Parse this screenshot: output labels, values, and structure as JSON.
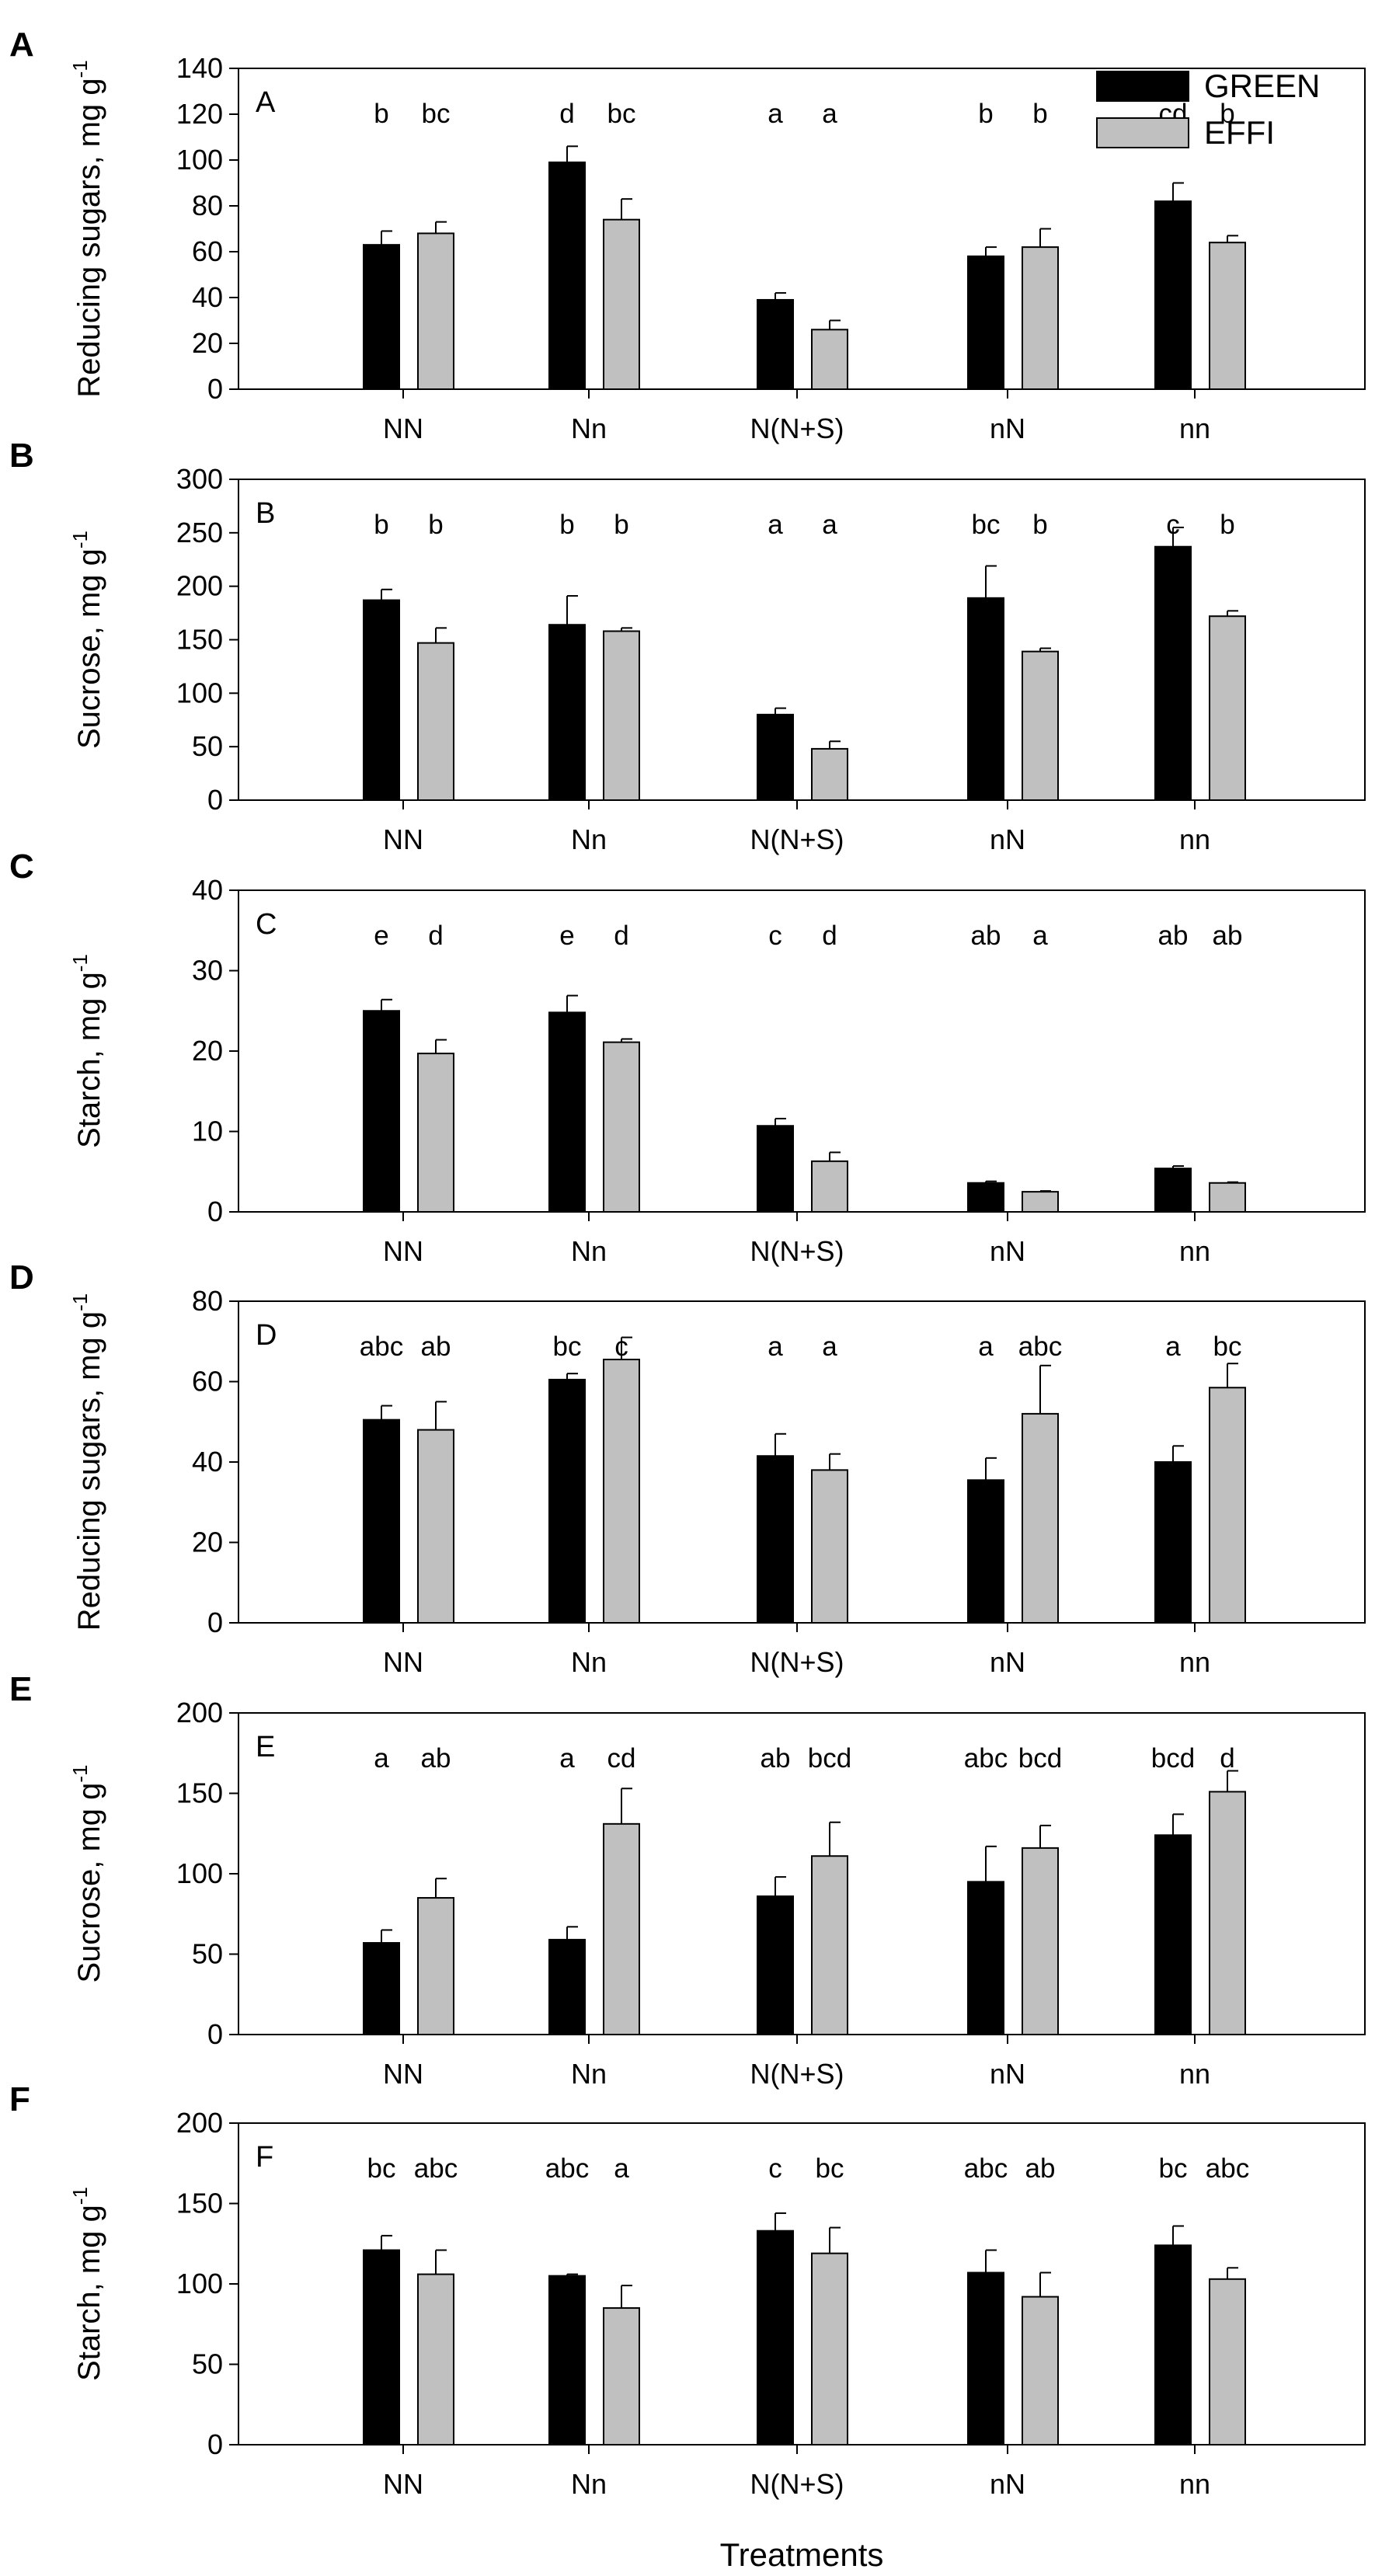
{
  "figure": {
    "x_title": "Treatments",
    "legend": {
      "position": "top-right",
      "items": [
        {
          "name": "GREEN",
          "color": "#000000"
        },
        {
          "name": "EFFI",
          "color": "#c0c0c0"
        }
      ]
    },
    "colors": {
      "green_bar": "#000000",
      "effi_bar": "#c0c0c0",
      "axis": "#000000"
    }
  },
  "chart_data": [
    {
      "type": "bar",
      "panel": "A",
      "inner_label": "A",
      "ylabel_main": "Reducing sugars, mg g",
      "ylabel_sup": "-1",
      "xlabel": "",
      "categories": [
        "NN",
        "Nn",
        "N(N+S)",
        "nN",
        "nn"
      ],
      "ylim": [
        0,
        140
      ],
      "yticks": [
        0,
        20,
        40,
        60,
        80,
        100,
        120,
        140
      ],
      "series": [
        {
          "name": "GREEN",
          "values": [
            63,
            99,
            39,
            58,
            82
          ],
          "errors": [
            6,
            7,
            3,
            4,
            8
          ],
          "letters": [
            "b",
            "d",
            "a",
            "b",
            "cd"
          ]
        },
        {
          "name": "EFFI",
          "values": [
            68,
            74,
            26,
            62,
            64
          ],
          "errors": [
            5,
            9,
            4,
            8,
            3
          ],
          "letters": [
            "bc",
            "bc",
            "a",
            "b",
            "b"
          ]
        }
      ]
    },
    {
      "type": "bar",
      "panel": "B",
      "inner_label": "B",
      "ylabel_main": "Sucrose, mg g",
      "ylabel_sup": "-1",
      "xlabel": "",
      "categories": [
        "NN",
        "Nn",
        "N(N+S)",
        "nN",
        "nn"
      ],
      "ylim": [
        0,
        300
      ],
      "yticks": [
        0,
        50,
        100,
        150,
        200,
        250,
        300
      ],
      "series": [
        {
          "name": "GREEN",
          "values": [
            187,
            164,
            80,
            189,
            237
          ],
          "errors": [
            10,
            27,
            6,
            30,
            18
          ],
          "letters": [
            "b",
            "b",
            "a",
            "bc",
            "c"
          ]
        },
        {
          "name": "EFFI",
          "values": [
            147,
            158,
            48,
            139,
            172
          ],
          "errors": [
            14,
            3,
            7,
            3,
            5
          ],
          "letters": [
            "b",
            "b",
            "a",
            "b",
            "b"
          ]
        }
      ]
    },
    {
      "type": "bar",
      "panel": "C",
      "inner_label": "C",
      "ylabel_main": "Starch, mg g",
      "ylabel_sup": "-1",
      "xlabel": "",
      "categories": [
        "NN",
        "Nn",
        "N(N+S)",
        "nN",
        "nn"
      ],
      "ylim": [
        0,
        40
      ],
      "yticks": [
        0,
        10,
        20,
        30,
        40
      ],
      "series": [
        {
          "name": "GREEN",
          "values": [
            25,
            24.8,
            10.7,
            3.6,
            5.4
          ],
          "errors": [
            1.4,
            2.1,
            0.9,
            0.2,
            0.3
          ],
          "letters": [
            "e",
            "e",
            "c",
            "ab",
            "ab"
          ]
        },
        {
          "name": "EFFI",
          "values": [
            19.7,
            21.1,
            6.3,
            2.5,
            3.6
          ],
          "errors": [
            1.7,
            0.4,
            1.1,
            0.1,
            0.1
          ],
          "letters": [
            "d",
            "d",
            "d",
            "a",
            "ab"
          ]
        }
      ]
    },
    {
      "type": "bar",
      "panel": "D",
      "inner_label": "D",
      "ylabel_main": "Reducing sugars, mg g",
      "ylabel_sup": "-1",
      "xlabel": "",
      "categories": [
        "NN",
        "Nn",
        "N(N+S)",
        "nN",
        "nn"
      ],
      "ylim": [
        0,
        80
      ],
      "yticks": [
        0,
        20,
        40,
        60,
        80
      ],
      "series": [
        {
          "name": "GREEN",
          "values": [
            50.5,
            60.5,
            41.5,
            35.5,
            40
          ],
          "errors": [
            3.5,
            1.5,
            5.5,
            5.5,
            4
          ],
          "letters": [
            "abc",
            "bc",
            "a",
            "a",
            "a"
          ]
        },
        {
          "name": "EFFI",
          "values": [
            48,
            65.5,
            38,
            52,
            58.5
          ],
          "errors": [
            7,
            5.5,
            4,
            12,
            6
          ],
          "letters": [
            "ab",
            "c",
            "a",
            "abc",
            "bc"
          ]
        }
      ]
    },
    {
      "type": "bar",
      "panel": "E",
      "inner_label": "E",
      "ylabel_main": "Sucrose, mg g",
      "ylabel_sup": "-1",
      "xlabel": "",
      "categories": [
        "NN",
        "Nn",
        "N(N+S)",
        "nN",
        "nn"
      ],
      "ylim": [
        0,
        200
      ],
      "yticks": [
        0,
        50,
        100,
        150,
        200
      ],
      "series": [
        {
          "name": "GREEN",
          "values": [
            57,
            59,
            86,
            95,
            124
          ],
          "errors": [
            8,
            8,
            12,
            22,
            13
          ],
          "letters": [
            "a",
            "a",
            "ab",
            "abc",
            "bcd"
          ]
        },
        {
          "name": "EFFI",
          "values": [
            85,
            131,
            111,
            116,
            151
          ],
          "errors": [
            12,
            22,
            21,
            14,
            13
          ],
          "letters": [
            "ab",
            "cd",
            "bcd",
            "bcd",
            "d"
          ]
        }
      ]
    },
    {
      "type": "bar",
      "panel": "F",
      "inner_label": "F",
      "ylabel_main": "Starch, mg g",
      "ylabel_sup": "-1",
      "xlabel": "Treatments",
      "categories": [
        "NN",
        "Nn",
        "N(N+S)",
        "nN",
        "nn"
      ],
      "ylim": [
        0,
        200
      ],
      "yticks": [
        0,
        50,
        100,
        150,
        200
      ],
      "series": [
        {
          "name": "GREEN",
          "values": [
            121,
            105,
            133,
            107,
            124
          ],
          "errors": [
            9,
            1,
            11,
            14,
            12
          ],
          "letters": [
            "bc",
            "abc",
            "c",
            "abc",
            "bc"
          ]
        },
        {
          "name": "EFFI",
          "values": [
            106,
            85,
            119,
            92,
            103
          ],
          "errors": [
            15,
            14,
            16,
            15,
            7
          ],
          "letters": [
            "abc",
            "a",
            "bc",
            "ab",
            "abc"
          ]
        }
      ]
    }
  ]
}
